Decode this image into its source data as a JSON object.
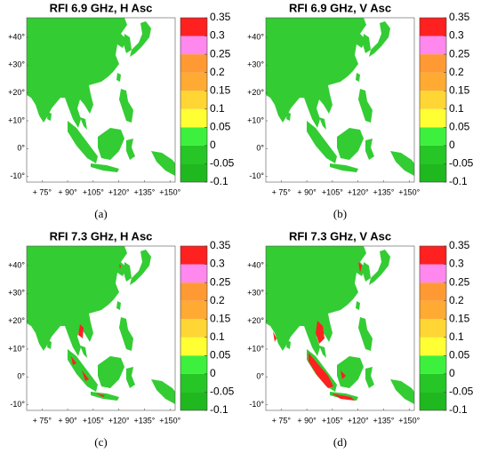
{
  "panels": [
    {
      "title": "RFI 6.9 GHz, H Asc",
      "caption": "(a)"
    },
    {
      "title": "RFI 6.9 GHz, V Asc",
      "caption": "(b)"
    },
    {
      "title": "RFI 7.3 GHz, H Asc",
      "caption": "(c)"
    },
    {
      "title": "RFI 7.3 GHz, V Asc",
      "caption": "(d)"
    }
  ],
  "lonlim": [
    66,
    153
  ],
  "latlim": [
    -12,
    47
  ],
  "lon_ticks": [
    {
      "value": 75,
      "label": "+ 75°"
    },
    {
      "value": 90,
      "label": "+ 90°"
    },
    {
      "value": 105,
      "label": "+105°"
    },
    {
      "value": 120,
      "label": "+120°"
    },
    {
      "value": 135,
      "label": "+135°"
    },
    {
      "value": 150,
      "label": "+150°"
    }
  ],
  "lat_ticks": [
    {
      "value": 40,
      "label": "+40°"
    },
    {
      "value": 30,
      "label": "+30°"
    },
    {
      "value": 20,
      "label": "+20°"
    },
    {
      "value": 10,
      "label": "+10°"
    },
    {
      "value": 0,
      "label": "0°"
    },
    {
      "value": -10,
      "label": "-10°"
    }
  ],
  "colorbar": {
    "clim": [
      -0.1,
      0.35
    ],
    "ticks": [
      -0.1,
      -0.05,
      0,
      0.05,
      0.1,
      0.15,
      0.2,
      0.25,
      0.3,
      0.35
    ],
    "colors": [
      "#1fb81f",
      "#26c626",
      "#3df03d",
      "#ffff33",
      "#ffd633",
      "#ffaa33",
      "#ff9933",
      "#ff88ee",
      "#ff2020"
    ]
  }
}
